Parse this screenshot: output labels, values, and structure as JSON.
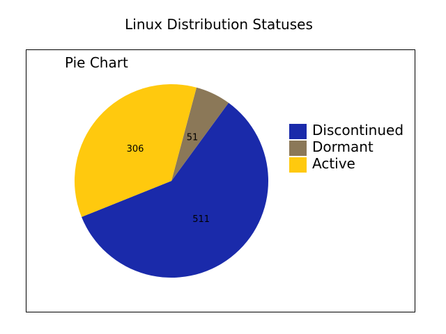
{
  "chart_data": {
    "type": "pie",
    "title": "Linux Distribution Statuses",
    "subtitle": "Pie Chart",
    "slices": [
      {
        "name": "Discontinued",
        "value": 511,
        "color": "#1a2aaa"
      },
      {
        "name": "Dormant",
        "value": 51,
        "color": "#8b7858"
      },
      {
        "name": "Active",
        "value": 306,
        "color": "#ffc90e"
      }
    ],
    "legend_position": "right"
  }
}
